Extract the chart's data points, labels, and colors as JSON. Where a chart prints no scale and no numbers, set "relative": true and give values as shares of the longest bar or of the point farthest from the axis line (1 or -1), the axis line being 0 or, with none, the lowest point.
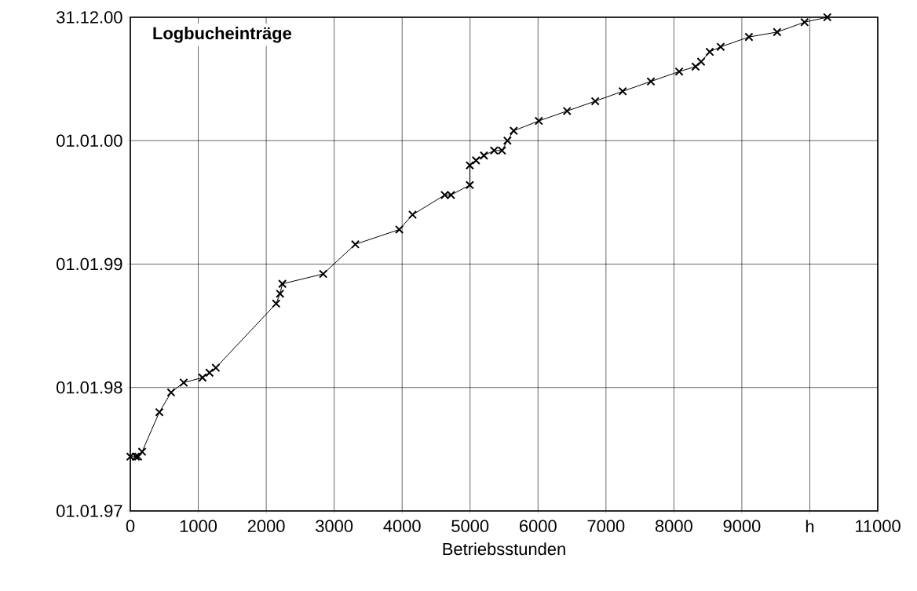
{
  "chart_data": {
    "type": "line",
    "title": "Logbucheinträge",
    "xlabel": "Betriebsstunden",
    "x": [
      0,
      81,
      115,
      173,
      427,
      600,
      785,
      1062,
      1165,
      1258,
      2146,
      2203,
      2238,
      2838,
      3311,
      3958,
      4154,
      4627,
      4719,
      4996,
      4996,
      5088,
      5204,
      5354,
      5469,
      5550,
      5642,
      6012,
      6427,
      6842,
      7246,
      7661,
      8077,
      8319,
      8400,
      8527,
      8688,
      9104,
      9519,
      9923,
      10258
    ],
    "series": [
      {
        "color": "#000000",
        "values": [
          0.11,
          0.11,
          0.11,
          0.12,
          0.2,
          0.24,
          0.26,
          0.27,
          0.28,
          0.29,
          0.42,
          0.44,
          0.46,
          0.48,
          0.54,
          0.57,
          0.6,
          0.64,
          0.64,
          0.66,
          0.7,
          0.71,
          0.72,
          0.73,
          0.73,
          0.75,
          0.77,
          0.79,
          0.81,
          0.83,
          0.85,
          0.87,
          0.89,
          0.9,
          0.91,
          0.93,
          0.94,
          0.96,
          0.97,
          0.99,
          1
        ]
      }
    ],
    "relative": true,
    "annotations": [
      "01.01.97",
      "01.01.98",
      "01.01.99",
      "01.01.00",
      "31.12.00"
    ],
    "xlim": [
      0,
      11000
    ],
    "xticks": [
      0,
      1000,
      2000,
      3000,
      4000,
      5000,
      6000,
      7000,
      8000,
      9000,
      {
        "value": 10000,
        "label": "h"
      },
      11000
    ],
    "grid": true,
    "marker": "cross",
    "line_style": "solid"
  }
}
